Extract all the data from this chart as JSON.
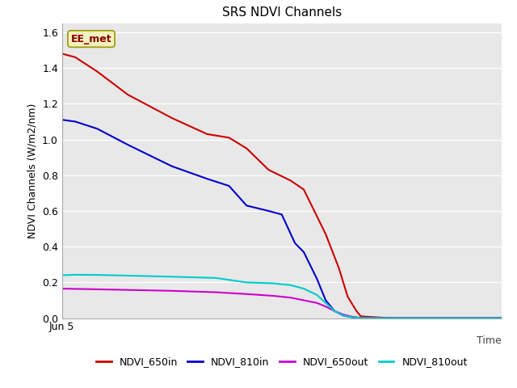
{
  "title": "SRS NDVI Channels",
  "ylabel": "NDVI Channels (W/m2/nm)",
  "time_label": "Time",
  "xlim": [
    0,
    100
  ],
  "ylim": [
    0.0,
    1.65
  ],
  "yticks": [
    0.0,
    0.2,
    0.4,
    0.6,
    0.8,
    1.0,
    1.2,
    1.4,
    1.6
  ],
  "plot_bg_color": "#e8e8e8",
  "fig_bg_color": "#ffffff",
  "annotation_text": "EE_met",
  "annotation_facecolor": "#f5f0c0",
  "annotation_edgecolor": "#999900",
  "annotation_textcolor": "#880000",
  "x_tick_pos": 0,
  "x_tick_label": "Jun 5",
  "grid_color": "#ffffff",
  "series": {
    "NDVI_650in": {
      "color": "#cc0000",
      "x": [
        0,
        3,
        8,
        15,
        25,
        33,
        38,
        42,
        47,
        52,
        55,
        58,
        60,
        63,
        65,
        67,
        68,
        75,
        85,
        100
      ],
      "y": [
        1.48,
        1.46,
        1.38,
        1.25,
        1.12,
        1.03,
        1.01,
        0.95,
        0.83,
        0.77,
        0.72,
        0.57,
        0.47,
        0.28,
        0.12,
        0.04,
        0.01,
        0.0,
        0.0,
        0.0
      ]
    },
    "NDVI_810in": {
      "color": "#0000cc",
      "x": [
        0,
        3,
        8,
        15,
        25,
        33,
        38,
        42,
        47,
        50,
        53,
        55,
        58,
        60,
        62,
        64,
        66,
        68,
        75,
        85,
        100
      ],
      "y": [
        1.11,
        1.1,
        1.06,
        0.97,
        0.85,
        0.78,
        0.74,
        0.63,
        0.6,
        0.58,
        0.42,
        0.37,
        0.22,
        0.1,
        0.04,
        0.015,
        0.005,
        0.0,
        0.0,
        0.0,
        0.0
      ]
    },
    "NDVI_650out": {
      "color": "#cc00cc",
      "x": [
        0,
        5,
        15,
        25,
        35,
        42,
        48,
        52,
        55,
        58,
        60,
        62,
        64,
        66,
        68,
        75,
        85,
        100
      ],
      "y": [
        0.165,
        0.163,
        0.158,
        0.153,
        0.145,
        0.135,
        0.125,
        0.115,
        0.1,
        0.085,
        0.065,
        0.04,
        0.02,
        0.008,
        0.002,
        0.0,
        0.0,
        0.0
      ]
    },
    "NDVI_810out": {
      "color": "#00cccc",
      "x": [
        0,
        3,
        8,
        15,
        25,
        35,
        42,
        48,
        52,
        55,
        58,
        60,
        62,
        64,
        66,
        68,
        75,
        85,
        100
      ],
      "y": [
        0.24,
        0.243,
        0.242,
        0.238,
        0.232,
        0.225,
        0.2,
        0.195,
        0.185,
        0.165,
        0.13,
        0.085,
        0.04,
        0.015,
        0.005,
        0.001,
        0.0,
        0.0,
        0.0
      ]
    }
  },
  "legend": [
    {
      "label": "NDVI_650in",
      "color": "#cc0000"
    },
    {
      "label": "NDVI_810in",
      "color": "#0000cc"
    },
    {
      "label": "NDVI_650out",
      "color": "#cc00cc"
    },
    {
      "label": "NDVI_810out",
      "color": "#00cccc"
    }
  ]
}
